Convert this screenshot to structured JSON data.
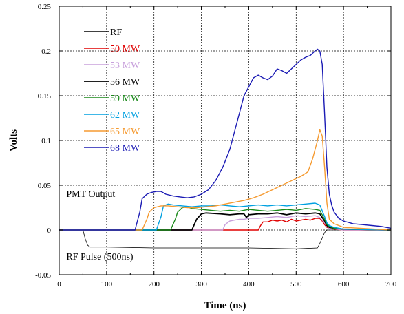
{
  "chart_data": {
    "type": "line",
    "xlabel": "Time (ns)",
    "ylabel": "Volts",
    "xlim": [
      0,
      700
    ],
    "ylim": [
      -0.05,
      0.25
    ],
    "x_ticks": [
      0,
      100,
      200,
      300,
      400,
      500,
      600,
      700
    ],
    "x_tick_labels": [
      "0",
      "100",
      "200",
      "300",
      "400",
      "500",
      "600",
      "700"
    ],
    "y_ticks": [
      -0.05,
      0,
      0.05,
      0.1,
      0.15,
      0.2,
      0.25
    ],
    "y_tick_labels": [
      "-0.05",
      "0",
      "0.05",
      "0.1",
      "0.15",
      "0.2",
      "0.25"
    ],
    "grid": true,
    "legend_position": "top-left",
    "annotations": [
      {
        "text": "PMT Output",
        "x": 15,
        "y": 0.037
      },
      {
        "text": "RF Pulse (500ns)",
        "x": 15,
        "y": -0.033
      }
    ],
    "series": [
      {
        "name": "RF",
        "color": "#000000",
        "width": 0.8,
        "x": [
          0,
          50,
          55,
          60,
          65,
          100,
          200,
          300,
          400,
          500,
          545,
          550,
          560,
          565,
          600,
          700
        ],
        "y": [
          0,
          0,
          -0.01,
          -0.017,
          -0.019,
          -0.019,
          -0.02,
          -0.02,
          -0.02,
          -0.021,
          -0.02,
          -0.015,
          -0.003,
          0,
          0,
          0
        ]
      },
      {
        "name": "50 MW",
        "color": "#e00000",
        "width": 1.4,
        "x": [
          0,
          380,
          420,
          425,
          430,
          440,
          450,
          460,
          470,
          480,
          490,
          500,
          510,
          520,
          530,
          540,
          550,
          555,
          560,
          565,
          570,
          580,
          600,
          700
        ],
        "y": [
          0,
          0,
          0,
          0.005,
          0.009,
          0.009,
          0.011,
          0.01,
          0.011,
          0.009,
          0.012,
          0.01,
          0.011,
          0.012,
          0.011,
          0.013,
          0.013,
          0.01,
          0.006,
          0.003,
          0.002,
          0.001,
          0,
          0
        ]
      },
      {
        "name": "53 MW",
        "color": "#c8a0dc",
        "width": 1.4,
        "x": [
          0,
          330,
          345,
          350,
          360,
          370,
          380,
          390,
          400,
          420,
          440,
          460,
          480,
          500,
          520,
          540,
          550,
          560,
          565,
          570,
          600,
          700
        ],
        "y": [
          0,
          0,
          0,
          0.006,
          0.01,
          0.011,
          0.012,
          0.012,
          0.013,
          0.013,
          0.014,
          0.015,
          0.014,
          0.016,
          0.015,
          0.016,
          0.014,
          0.008,
          0.004,
          0.002,
          0,
          0
        ]
      },
      {
        "name": "56 MW",
        "color": "#000000",
        "width": 1.8,
        "x": [
          0,
          280,
          290,
          300,
          310,
          340,
          360,
          380,
          390,
          395,
          400,
          420,
          440,
          460,
          480,
          500,
          520,
          540,
          550,
          560,
          565,
          570,
          580,
          600,
          700
        ],
        "y": [
          0,
          0,
          0.012,
          0.018,
          0.019,
          0.018,
          0.017,
          0.018,
          0.018,
          0.014,
          0.017,
          0.018,
          0.018,
          0.019,
          0.017,
          0.019,
          0.018,
          0.019,
          0.018,
          0.01,
          0.005,
          0.003,
          0.002,
          0.001,
          0
        ]
      },
      {
        "name": "59 MW",
        "color": "#1a8a1a",
        "width": 1.4,
        "x": [
          0,
          235,
          245,
          250,
          260,
          270,
          280,
          300,
          320,
          340,
          360,
          380,
          400,
          420,
          440,
          460,
          480,
          500,
          520,
          540,
          550,
          560,
          565,
          570,
          580,
          600,
          700
        ],
        "y": [
          0,
          0,
          0.012,
          0.02,
          0.025,
          0.026,
          0.024,
          0.023,
          0.022,
          0.021,
          0.022,
          0.021,
          0.023,
          0.022,
          0.021,
          0.022,
          0.023,
          0.022,
          0.024,
          0.023,
          0.022,
          0.012,
          0.006,
          0.004,
          0.002,
          0.001,
          0
        ]
      },
      {
        "name": "62 MW",
        "color": "#00a0e0",
        "width": 1.4,
        "x": [
          0,
          205,
          215,
          220,
          230,
          240,
          260,
          280,
          300,
          320,
          340,
          360,
          380,
          400,
          420,
          440,
          460,
          480,
          500,
          520,
          540,
          550,
          560,
          565,
          570,
          580,
          600,
          700
        ],
        "y": [
          0,
          0,
          0.015,
          0.027,
          0.029,
          0.028,
          0.027,
          0.026,
          0.027,
          0.027,
          0.028,
          0.027,
          0.026,
          0.027,
          0.028,
          0.027,
          0.028,
          0.027,
          0.028,
          0.029,
          0.03,
          0.028,
          0.015,
          0.008,
          0.005,
          0.003,
          0.001,
          0
        ]
      },
      {
        "name": "65 MW",
        "color": "#f59a30",
        "width": 1.4,
        "x": [
          0,
          175,
          185,
          190,
          200,
          215,
          230,
          250,
          270,
          290,
          310,
          330,
          350,
          370,
          390,
          410,
          430,
          450,
          470,
          490,
          510,
          525,
          535,
          545,
          550,
          555,
          560,
          565,
          570,
          580,
          600,
          700
        ],
        "y": [
          0,
          0,
          0.012,
          0.02,
          0.025,
          0.027,
          0.027,
          0.026,
          0.025,
          0.025,
          0.026,
          0.027,
          0.029,
          0.031,
          0.033,
          0.036,
          0.04,
          0.045,
          0.05,
          0.055,
          0.06,
          0.065,
          0.08,
          0.1,
          0.112,
          0.105,
          0.07,
          0.03,
          0.012,
          0.007,
          0.003,
          0
        ]
      },
      {
        "name": "68 MW",
        "color": "#1a1ab4",
        "width": 1.4,
        "x": [
          0,
          160,
          170,
          175,
          185,
          195,
          205,
          215,
          225,
          240,
          255,
          270,
          285,
          300,
          315,
          330,
          345,
          360,
          370,
          380,
          390,
          400,
          410,
          420,
          430,
          440,
          450,
          460,
          470,
          480,
          490,
          500,
          510,
          520,
          530,
          540,
          545,
          550,
          555,
          560,
          565,
          570,
          575,
          580,
          590,
          600,
          620,
          640,
          660,
          680,
          700
        ],
        "y": [
          0,
          0,
          0.02,
          0.035,
          0.04,
          0.042,
          0.043,
          0.043,
          0.04,
          0.038,
          0.037,
          0.036,
          0.037,
          0.04,
          0.045,
          0.055,
          0.07,
          0.09,
          0.11,
          0.13,
          0.15,
          0.16,
          0.17,
          0.173,
          0.17,
          0.168,
          0.172,
          0.18,
          0.178,
          0.175,
          0.18,
          0.185,
          0.19,
          0.193,
          0.195,
          0.2,
          0.202,
          0.2,
          0.185,
          0.13,
          0.07,
          0.04,
          0.028,
          0.02,
          0.013,
          0.01,
          0.007,
          0.006,
          0.005,
          0.004,
          0.002
        ]
      }
    ]
  }
}
